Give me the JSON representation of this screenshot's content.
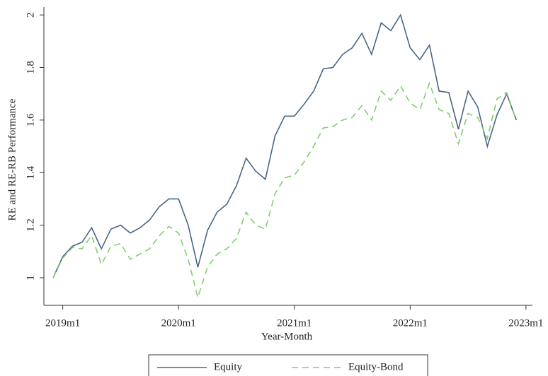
{
  "chart_data": {
    "type": "line",
    "x_label": "Year-Month",
    "y_label": "RE and RE-RB Performance",
    "x": [
      "2018m12",
      "2019m1",
      "2019m2",
      "2019m3",
      "2019m4",
      "2019m5",
      "2019m6",
      "2019m7",
      "2019m8",
      "2019m9",
      "2019m10",
      "2019m11",
      "2019m12",
      "2020m1",
      "2020m2",
      "2020m3",
      "2020m4",
      "2020m5",
      "2020m6",
      "2020m7",
      "2020m8",
      "2020m9",
      "2020m10",
      "2020m11",
      "2020m12",
      "2021m1",
      "2021m2",
      "2021m3",
      "2021m4",
      "2021m5",
      "2021m6",
      "2021m7",
      "2021m8",
      "2021m9",
      "2021m10",
      "2021m11",
      "2021m12",
      "2022m1",
      "2022m2",
      "2022m3",
      "2022m4",
      "2022m5",
      "2022m6",
      "2022m7",
      "2022m8",
      "2022m9",
      "2022m10",
      "2022m11",
      "2022m12"
    ],
    "xticks": [
      "2019m1",
      "2020m1",
      "2021m1",
      "2022m1",
      "2023m1"
    ],
    "ylim": [
      0.895,
      2.03
    ],
    "yticks": [
      1,
      1.2,
      1.4,
      1.6,
      1.8,
      2
    ],
    "legend": "bottom",
    "series": [
      {
        "name": "Equity",
        "color": "#4a6584",
        "dash": false,
        "values": [
          1.0,
          1.08,
          1.12,
          1.135,
          1.19,
          1.11,
          1.185,
          1.2,
          1.17,
          1.19,
          1.22,
          1.27,
          1.3,
          1.3,
          1.2,
          1.04,
          1.18,
          1.25,
          1.28,
          1.35,
          1.455,
          1.405,
          1.375,
          1.54,
          1.615,
          1.615,
          1.66,
          1.71,
          1.795,
          1.8,
          1.85,
          1.875,
          1.93,
          1.85,
          1.97,
          1.94,
          2.0,
          1.875,
          1.83,
          1.885,
          1.71,
          1.705,
          1.565,
          1.71,
          1.65,
          1.5,
          1.62,
          1.7,
          1.6
        ]
      },
      {
        "name": "Equity-Bond",
        "color": "#7fcf6f",
        "dash": true,
        "values": [
          1.0,
          1.075,
          1.115,
          1.11,
          1.16,
          1.05,
          1.12,
          1.13,
          1.07,
          1.09,
          1.11,
          1.16,
          1.195,
          1.17,
          1.07,
          0.925,
          1.04,
          1.09,
          1.11,
          1.15,
          1.25,
          1.2,
          1.185,
          1.32,
          1.38,
          1.39,
          1.44,
          1.5,
          1.57,
          1.575,
          1.6,
          1.61,
          1.655,
          1.6,
          1.71,
          1.675,
          1.73,
          1.665,
          1.64,
          1.74,
          1.64,
          1.625,
          1.51,
          1.625,
          1.61,
          1.53,
          1.68,
          1.705,
          1.6
        ]
      }
    ]
  }
}
